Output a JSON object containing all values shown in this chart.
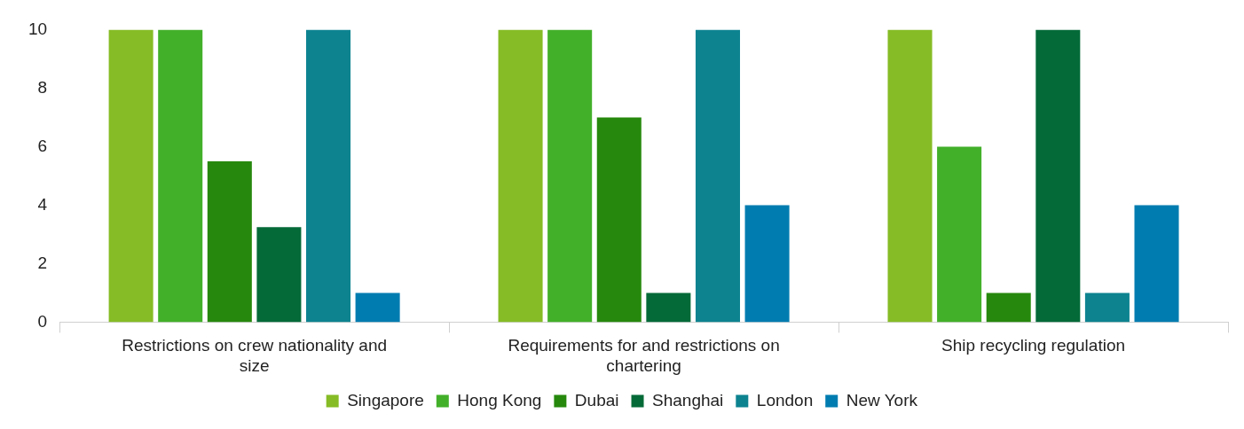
{
  "chart_data": {
    "type": "bar",
    "categories": [
      "Restrictions on crew nationality and size",
      "Requirements for and restrictions on chartering",
      "Ship recycling regulation"
    ],
    "series": [
      {
        "name": "Singapore",
        "color": "#86bc25",
        "values": [
          10,
          10,
          10
        ]
      },
      {
        "name": "Hong Kong",
        "color": "#43b02a",
        "values": [
          10,
          10,
          6
        ]
      },
      {
        "name": "Dubai",
        "color": "#26890d",
        "values": [
          5.5,
          7,
          1
        ]
      },
      {
        "name": "Shanghai",
        "color": "#046a38",
        "values": [
          3.25,
          1,
          10
        ]
      },
      {
        "name": "London",
        "color": "#0d8390",
        "values": [
          10,
          10,
          1
        ]
      },
      {
        "name": "New York",
        "color": "#007cb0",
        "values": [
          1,
          4,
          4
        ]
      }
    ],
    "ylim": [
      0,
      10
    ],
    "yticks": [
      0,
      2,
      4,
      6,
      8,
      10
    ],
    "legend": "bottom"
  }
}
